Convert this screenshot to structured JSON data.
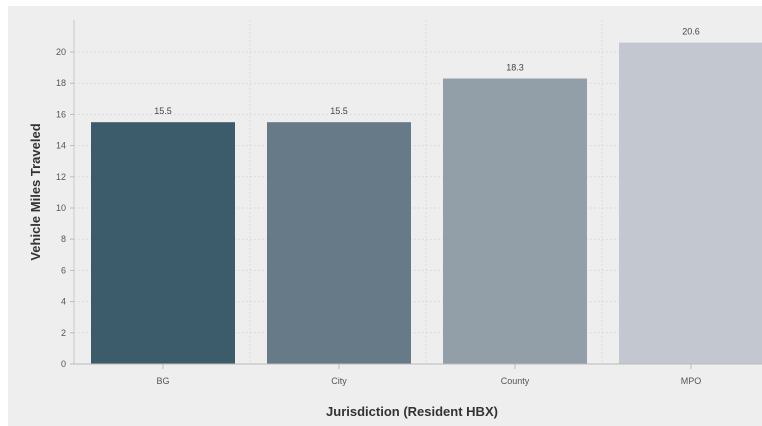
{
  "chart_data": {
    "type": "bar",
    "categories": [
      "BG",
      "City",
      "County",
      "MPO"
    ],
    "values": [
      15.5,
      15.5,
      18.3,
      20.6
    ],
    "value_labels": [
      "15.5",
      "15.5",
      "18.3",
      "20.6"
    ],
    "title": "",
    "xlabel": "Jurisdiction (Resident HBX)",
    "ylabel": "Vehicle Miles Traveled",
    "ylim": [
      0,
      22
    ],
    "yticks": [
      "0",
      "2",
      "4",
      "6",
      "8",
      "10",
      "12",
      "14",
      "16",
      "18",
      "20"
    ],
    "grid": true,
    "legend": "none",
    "colors": [
      "#3d5c6b",
      "#677a87",
      "#929ea8",
      "#c2c7d0"
    ],
    "background": "#eeeeee"
  }
}
